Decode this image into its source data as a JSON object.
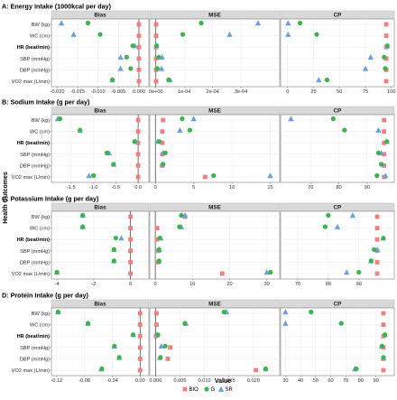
{
  "y_axis_title": "Health Outcomes",
  "x_axis_title": "Value",
  "legend": {
    "items": [
      {
        "label": "BIO",
        "shape": "square",
        "color": "#f08080"
      },
      {
        "label": "G",
        "shape": "circle",
        "color": "#3cb44b"
      },
      {
        "label": "SR",
        "shape": "triangle",
        "color": "#6ca0dc"
      }
    ]
  },
  "chart_data": [
    {
      "type": "scatter",
      "title": "A: Energy Intake (1000kcal per day)",
      "outcomes": [
        "BW (kg)",
        "WC (cm)",
        "HR (beat/min)",
        "SBP (mmHg)",
        "DBP (mmHg)",
        "VO2 max (L/min)"
      ],
      "bold_outcomes": [
        "HR (beat/min)"
      ],
      "facets": [
        {
          "name": "Bias",
          "xlim": [
            -0.021,
            0.002
          ],
          "ticks": [
            -0.02,
            -0.015,
            -0.01,
            -0.005,
            0.0
          ],
          "tick_labels": [
            "-0.020",
            "-0.015",
            "-0.010",
            "-0.005",
            "0.000"
          ],
          "zero_line": 0,
          "series": [
            {
              "name": "BIO",
              "values": [
                0,
                0,
                0,
                0,
                0,
                0
              ]
            },
            {
              "name": "G",
              "values": [
                -0.0125,
                -0.0095,
                -0.0015,
                -0.003,
                -0.002,
                -0.0065
              ]
            },
            {
              "name": "SR",
              "values": [
                -0.019,
                -0.016,
                -0.001,
                -0.0045,
                -0.0045,
                -0.0065
              ]
            }
          ]
        },
        {
          "name": "MSE",
          "xlim": [
            -1.5e-05,
            0.00043
          ],
          "ticks": [
            0,
            0.0001,
            0.0002,
            0.0003
          ],
          "tick_labels": [
            "0e+00",
            "1e-04",
            "2e-04",
            "3e-04"
          ],
          "zero_line": 0,
          "series": [
            {
              "name": "BIO",
              "values": [
                1e-06,
                1e-06,
                1e-06,
                1e-06,
                1e-06,
                1e-06
              ]
            },
            {
              "name": "G",
              "values": [
                0.00016,
                9.5e-05,
                3e-06,
                1e-05,
                5e-06,
                4.5e-05
              ]
            },
            {
              "name": "SR",
              "values": [
                0.00036,
                0.00026,
                2e-06,
                2.2e-05,
                2e-05,
                5e-05
              ]
            }
          ]
        },
        {
          "name": "CP",
          "xlim": [
            -5,
            101
          ],
          "ticks": [
            0,
            25,
            50,
            75,
            100
          ],
          "tick_labels": [
            "0",
            "25",
            "50",
            "75",
            "100"
          ],
          "zero_line": null,
          "series": [
            {
              "name": "BIO",
              "values": [
                95,
                95,
                95,
                95,
                95,
                95
              ]
            },
            {
              "name": "G",
              "values": [
                12,
                28,
                96,
                93,
                94,
                38
              ]
            },
            {
              "name": "SR",
              "values": [
                0.5,
                0.5,
                96,
                80,
                75,
                30
              ]
            }
          ]
        }
      ]
    },
    {
      "type": "scatter",
      "title": "B: Sodium Intake (g per day)",
      "outcomes": [
        "BW (kg)",
        "WC (cm)",
        "HR (beat/min)",
        "SBP (mmHg)",
        "DBP (mmHg)",
        "VO2 max (L/min)"
      ],
      "bold_outcomes": [
        "HR (beat/min)"
      ],
      "facets": [
        {
          "name": "Bias",
          "xlim": [
            -1.9,
            0.2
          ],
          "ticks": [
            -1.5,
            -1.0,
            -0.5,
            0.0
          ],
          "tick_labels": [
            "-1.5",
            "-1.0",
            "-0.5",
            "0.0"
          ],
          "zero_line": 0,
          "series": [
            {
              "name": "BIO",
              "values": [
                0,
                0,
                0,
                0,
                0,
                0
              ]
            },
            {
              "name": "G",
              "values": [
                -1.75,
                -1.3,
                -0.08,
                -0.7,
                -0.55,
                -1.0
              ]
            },
            {
              "name": "SR",
              "values": [
                -1.8,
                -1.3,
                -0.05,
                -0.65,
                -0.55,
                -1.1
              ]
            }
          ]
        },
        {
          "name": "MSE",
          "xlim": [
            -0.5,
            16
          ],
          "ticks": [
            0,
            5,
            10,
            15
          ],
          "tick_labels": [
            "0",
            "5",
            "10",
            "15"
          ],
          "zero_line": 0,
          "series": [
            {
              "name": "BIO",
              "values": [
                1,
                0.9,
                0.9,
                0.9,
                0.9,
                6.5
              ]
            },
            {
              "name": "G",
              "values": [
                3.5,
                4.5,
                0.5,
                1.3,
                1.0,
                7.6
              ]
            },
            {
              "name": "SR",
              "values": [
                5,
                3.2,
                0.3,
                1.0,
                0.9,
                15
              ]
            }
          ]
        },
        {
          "name": "CP",
          "xlim": [
            60,
            99
          ],
          "ticks": [
            70,
            80,
            90
          ],
          "tick_labels": [
            "70",
            "80",
            "90"
          ],
          "zero_line": null,
          "series": [
            {
              "name": "BIO",
              "values": [
                96,
                96,
                96,
                96,
                96,
                96
              ]
            },
            {
              "name": "G",
              "values": [
                78,
                82,
                97,
                94,
                95,
                93.5
              ]
            },
            {
              "name": "SR",
              "values": [
                63,
                94,
                97,
                95,
                95.5,
                96.5
              ]
            }
          ]
        }
      ]
    },
    {
      "type": "scatter",
      "title": "C: Potassium Intake (g per day)",
      "outcomes": [
        "BW (kg)",
        "WC (cm)",
        "HR (beat/min)",
        "SBP (mmHg)",
        "DBP (mmHg)",
        "VO2 max (L/min)"
      ],
      "bold_outcomes": [
        "HR (beat/min)"
      ],
      "facets": [
        {
          "name": "Bias",
          "xlim": [
            -4.2,
            0.9
          ],
          "ticks": [
            -4,
            -2,
            0
          ],
          "tick_labels": [
            "-4",
            "-2",
            "0"
          ],
          "zero_line": 0,
          "series": [
            {
              "name": "BIO",
              "values": [
                0,
                0,
                0,
                0,
                0,
                0
              ]
            },
            {
              "name": "G",
              "values": [
                -2.6,
                -2.6,
                -0.8,
                -0.9,
                -0.9,
                -4.0
              ]
            },
            {
              "name": "SR",
              "values": [
                -2.6,
                -2.6,
                -0.5,
                -0.9,
                -0.9,
                -4.0
              ]
            }
          ]
        },
        {
          "name": "MSE",
          "xlim": [
            -1,
            33
          ],
          "ticks": [
            0,
            10,
            20,
            30
          ],
          "tick_labels": [
            "0",
            "10",
            "20",
            "30"
          ],
          "zero_line": 0,
          "series": [
            {
              "name": "BIO",
              "values": [
                8,
                0.5,
                0.4,
                0.8,
                0.8,
                18
              ]
            },
            {
              "name": "G",
              "values": [
                7,
                6.5,
                1.2,
                1.0,
                1.0,
                31
              ]
            },
            {
              "name": "SR",
              "values": [
                8,
                7,
                1.5,
                1.0,
                1.0,
                30
              ]
            }
          ]
        },
        {
          "name": "CP",
          "xlim": [
            65,
            101
          ],
          "ticks": [
            70,
            80,
            90
          ],
          "tick_labels": [
            "70",
            "80",
            "90"
          ],
          "zero_line": null,
          "series": [
            {
              "name": "BIO",
              "values": [
                96,
                96,
                96,
                96,
                96,
                96
              ]
            },
            {
              "name": "G",
              "values": [
                80,
                79,
                98,
                95,
                94,
                90
              ]
            },
            {
              "name": "SR",
              "values": [
                88,
                83,
                98,
                96,
                94,
                86
              ]
            }
          ]
        }
      ]
    },
    {
      "type": "scatter",
      "title": "D: Protein Intake (g per day)",
      "outcomes": [
        "BW (kg)",
        "WC (cm)",
        "HR (beat/min)",
        "SBP (mmHg)",
        "DBP (mmHg)",
        "VO2 max (L/min)"
      ],
      "bold_outcomes": [
        "HR (beat/min)"
      ],
      "facets": [
        {
          "name": "Bias",
          "xlim": [
            -0.125,
            0.01
          ],
          "ticks": [
            -0.12,
            -0.08,
            -0.04,
            0.0
          ],
          "tick_labels": [
            "-0.12",
            "-0.08",
            "-0.04",
            "0.00"
          ],
          "zero_line": 0,
          "series": [
            {
              "name": "BIO",
              "values": [
                0,
                0,
                0,
                0,
                0,
                0
              ]
            },
            {
              "name": "G",
              "values": [
                -0.118,
                -0.075,
                -0.01,
                -0.037,
                -0.03,
                -0.055
              ]
            },
            {
              "name": "SR",
              "values": [
                -0.118,
                -0.075,
                -0.01,
                -0.037,
                -0.03,
                -0.056
              ]
            }
          ]
        },
        {
          "name": "MSE",
          "xlim": [
            -0.0008,
            0.025
          ],
          "ticks": [
            0,
            0.005,
            0.01,
            0.015,
            0.02
          ],
          "tick_labels": [
            "0.000",
            "0.005",
            "0.010",
            "0.015",
            "0.020"
          ],
          "zero_line": 0,
          "series": [
            {
              "name": "BIO",
              "values": [
                0.0002,
                0.0002,
                0.0001,
                0.003,
                0.0025,
                0.0205
              ]
            },
            {
              "name": "G",
              "values": [
                0.014,
                0.006,
                0.0005,
                0.002,
                0.001,
                0.0225
              ]
            },
            {
              "name": "SR",
              "values": [
                0.0145,
                0.0062,
                0.0003,
                0.0012,
                0.0009,
                0.0225
              ]
            }
          ]
        },
        {
          "name": "CP",
          "xlim": [
            28,
            101
          ],
          "ticks": [
            30,
            40,
            50,
            60,
            70,
            80,
            90
          ],
          "tick_labels": [
            "30",
            "40",
            "50",
            "60",
            "70",
            "80",
            "90"
          ],
          "zero_line": null,
          "series": [
            {
              "name": "BIO",
              "values": [
                95,
                95,
                95,
                95,
                95,
                95
              ]
            },
            {
              "name": "G",
              "values": [
                47,
                67,
                96,
                94,
                95,
                77
              ]
            },
            {
              "name": "SR",
              "values": [
                30,
                30,
                96,
                94,
                95,
                76
              ]
            }
          ]
        }
      ]
    }
  ]
}
